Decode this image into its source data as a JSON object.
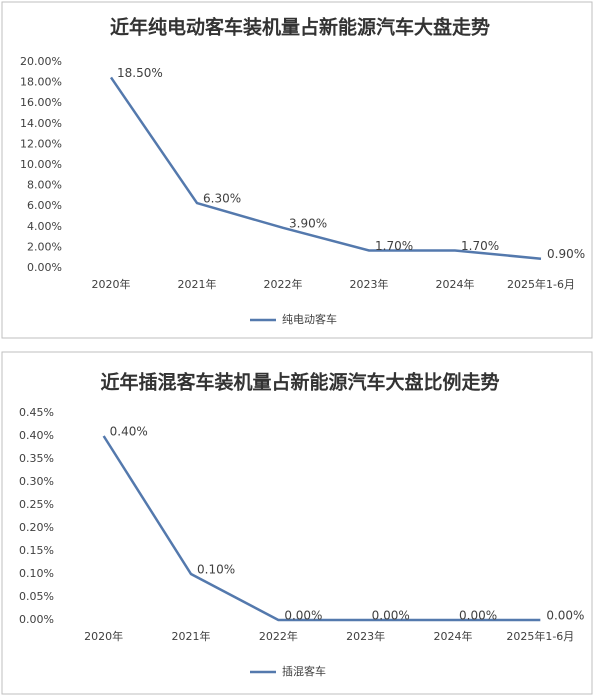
{
  "chart_data": [
    {
      "type": "line",
      "title": "近年纯电动客车装机量占新能源汽车大盘走势",
      "categories": [
        "2020年",
        "2021年",
        "2022年",
        "2023年",
        "2024年",
        "2025年1-6月"
      ],
      "series": [
        {
          "name": "纯电动客车",
          "color": "#5479ad",
          "values": [
            18.5,
            6.3,
            3.9,
            1.7,
            1.7,
            0.9
          ],
          "value_labels": [
            "18.50%",
            "6.30%",
            "3.90%",
            "1.70%",
            "1.70%",
            "0.90%"
          ]
        }
      ],
      "ylim": [
        0,
        20
      ],
      "yticks": [
        {
          "value": 0,
          "label": "0.00%"
        },
        {
          "value": 2,
          "label": "2.00%"
        },
        {
          "value": 4,
          "label": "4.00%"
        },
        {
          "value": 6,
          "label": "6.00%"
        },
        {
          "value": 8,
          "label": "8.00%"
        },
        {
          "value": 10,
          "label": "10.00%"
        },
        {
          "value": 12,
          "label": "12.00%"
        },
        {
          "value": 14,
          "label": "14.00%"
        },
        {
          "value": 16,
          "label": "16.00%"
        },
        {
          "value": 18,
          "label": "18.00%"
        },
        {
          "value": 20,
          "label": "20.00%"
        }
      ],
      "grid": false,
      "legend": "bottom"
    },
    {
      "type": "line",
      "title": "近年插混客车装机量占新能源汽车大盘比例走势",
      "categories": [
        "2020年",
        "2021年",
        "2022年",
        "2023年",
        "2024年",
        "2025年1-6月"
      ],
      "series": [
        {
          "name": "插混客车",
          "color": "#5479ad",
          "values": [
            0.4,
            0.1,
            0,
            0,
            0,
            0
          ],
          "value_labels": [
            "0.40%",
            "0.10%",
            "0.00%",
            "0.00%",
            "0.00%",
            "0.00%"
          ]
        }
      ],
      "ylim": [
        0,
        0.45
      ],
      "yticks": [
        {
          "value": 0,
          "label": "0.00%"
        },
        {
          "value": 0.05,
          "label": "0.05%"
        },
        {
          "value": 0.1,
          "label": "0.10%"
        },
        {
          "value": 0.15,
          "label": "0.15%"
        },
        {
          "value": 0.2,
          "label": "0.20%"
        },
        {
          "value": 0.25,
          "label": "0.25%"
        },
        {
          "value": 0.3,
          "label": "0.30%"
        },
        {
          "value": 0.35,
          "label": "0.35%"
        },
        {
          "value": 0.4,
          "label": "0.40%"
        },
        {
          "value": 0.45,
          "label": "0.45%"
        }
      ],
      "grid": false,
      "legend": "bottom"
    }
  ]
}
